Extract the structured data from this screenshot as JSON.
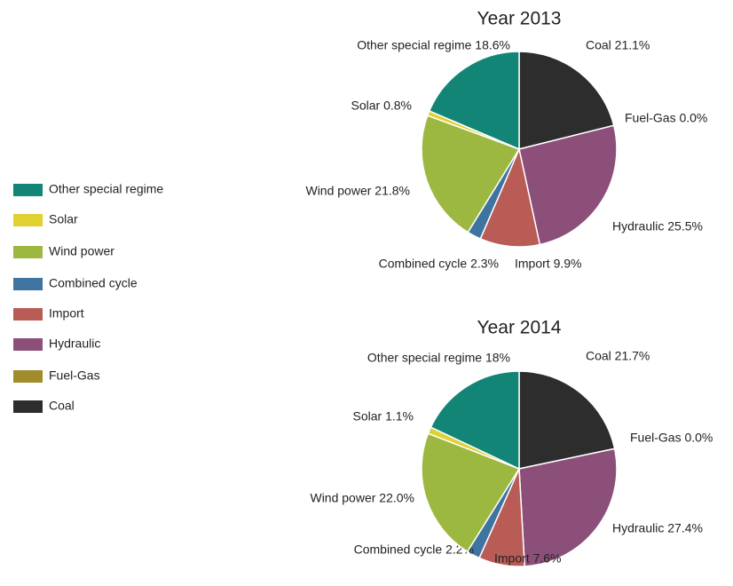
{
  "chart_data": [
    {
      "type": "pie",
      "title": "Year 2013",
      "categories": [
        "Coal",
        "Fuel-Gas",
        "Hydraulic",
        "Import",
        "Combined cycle",
        "Wind power",
        "Solar",
        "Other special regime"
      ],
      "values": [
        21.1,
        0.0,
        25.5,
        9.9,
        2.3,
        21.8,
        0.8,
        18.6
      ],
      "value_labels": [
        "Coal 21.1%",
        "Fuel-Gas 0.0%",
        "Hydraulic 25.5%",
        "Import 9.9%",
        "Combined cycle 2.3%",
        "Wind power 21.8%",
        "Solar 0.8%",
        "Other special regime 18.6%"
      ],
      "colors": [
        "#2d2d2d",
        "#a08c2a",
        "#8c4f7a",
        "#b85c55",
        "#3f74a0",
        "#9cb840",
        "#e0d030",
        "#138576"
      ],
      "legend": "left"
    },
    {
      "type": "pie",
      "title": "Year 2014",
      "categories": [
        "Coal",
        "Fuel-Gas",
        "Hydraulic",
        "Import",
        "Combined cycle",
        "Wind power",
        "Solar",
        "Other special regime"
      ],
      "values": [
        21.7,
        0.0,
        27.4,
        7.6,
        2.2,
        22.0,
        1.1,
        18
      ],
      "value_labels": [
        "Coal 21.7%",
        "Fuel-Gas 0.0%",
        "Hydraulic 27.4%",
        "Import 7.6%",
        "Combined cycle 2.2%",
        "Wind power 22.0%",
        "Solar 1.1%",
        "Other special regime 18%"
      ],
      "colors": [
        "#2d2d2d",
        "#a08c2a",
        "#8c4f7a",
        "#b85c55",
        "#3f74a0",
        "#9cb840",
        "#e0d030",
        "#138576"
      ]
    }
  ]
}
